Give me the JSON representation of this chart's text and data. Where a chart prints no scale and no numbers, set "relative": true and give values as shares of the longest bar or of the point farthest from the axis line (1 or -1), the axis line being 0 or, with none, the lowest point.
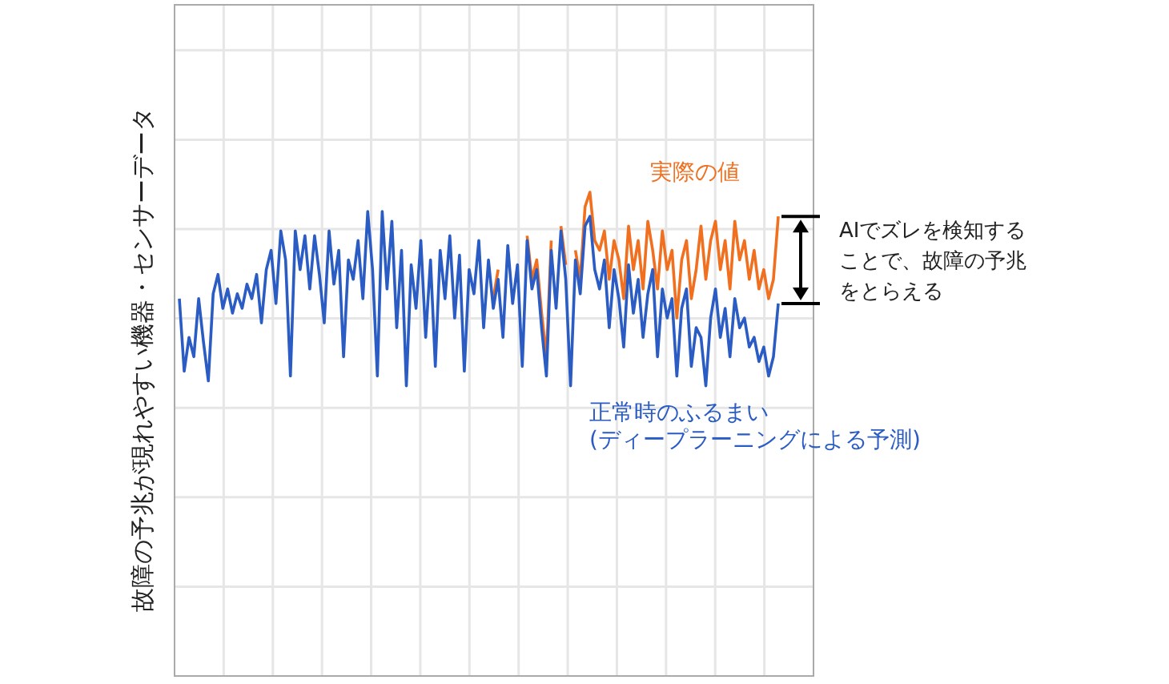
{
  "chart_data": {
    "type": "line",
    "relative": true,
    "grid": true,
    "marker": "none",
    "line_style": "solid",
    "ylabel": "故障の予兆が現れやすい機器・センサーデータ",
    "annotations": [
      "AIでズレを検知することで、故障の予兆をとらえる"
    ],
    "categories": [
      null,
      null,
      null,
      null,
      null,
      null,
      null,
      null,
      null,
      null,
      null,
      null,
      null,
      null,
      null,
      null,
      null,
      null,
      null,
      null,
      null,
      null,
      null,
      null,
      null,
      null,
      null,
      null,
      null,
      null,
      null,
      null,
      null,
      null,
      null,
      null,
      null,
      null,
      null,
      null,
      null,
      null,
      null,
      null,
      null,
      null,
      null,
      null,
      null,
      null,
      null,
      null,
      null,
      null,
      null,
      null,
      null,
      null,
      null,
      null,
      null,
      null,
      null,
      null,
      null,
      null,
      null,
      null,
      null,
      null,
      null,
      null,
      null,
      null,
      null,
      null,
      null,
      null,
      null,
      null,
      null,
      null,
      null,
      null,
      null,
      null,
      null,
      null,
      null,
      null,
      null,
      null,
      null,
      null,
      null,
      null,
      null,
      null,
      null,
      null,
      null,
      null,
      null,
      null,
      null,
      null,
      null,
      null,
      null,
      null,
      null,
      null,
      null,
      null,
      null,
      null,
      null,
      null,
      null,
      null,
      null,
      null,
      null,
      null,
      null
    ],
    "series": [
      {
        "name": "実際の値",
        "color": "#f07020",
        "values": [
          null,
          null,
          null,
          null,
          null,
          null,
          null,
          null,
          null,
          null,
          null,
          null,
          null,
          null,
          null,
          null,
          null,
          null,
          null,
          null,
          null,
          null,
          null,
          null,
          null,
          null,
          null,
          null,
          null,
          null,
          null,
          null,
          null,
          null,
          null,
          null,
          null,
          null,
          null,
          null,
          null,
          null,
          null,
          null,
          null,
          null,
          null,
          null,
          null,
          null,
          null,
          null,
          null,
          null,
          null,
          null,
          null,
          null,
          null,
          null,
          null,
          null,
          null,
          null,
          null,
          0.78,
          0.84,
          null,
          null,
          null,
          null,
          null,
          0.91,
          0.82,
          0.86,
          0.75,
          0.66,
          0.9,
          null,
          0.93,
          0.85,
          null,
          0.88,
          0.82,
          0.97,
          1.0,
          0.9,
          0.88,
          0.92,
          0.82,
          0.9,
          0.86,
          0.78,
          0.93,
          0.84,
          0.9,
          0.8,
          0.94,
          0.88,
          0.8,
          0.92,
          0.84,
          0.88,
          0.74,
          0.86,
          0.9,
          0.78,
          0.84,
          0.93,
          0.82,
          0.9,
          0.94,
          0.84,
          0.9,
          0.8,
          0.94,
          0.86,
          0.9,
          0.82,
          0.88,
          0.8,
          0.84,
          0.78,
          0.82,
          0.95
        ]
      },
      {
        "name": "正常時のふるまい\n(ディープラーニングによる予測)",
        "color": "#2a5cc4",
        "values": [
          0.78,
          0.63,
          0.7,
          0.66,
          0.78,
          0.69,
          0.61,
          0.79,
          0.83,
          0.76,
          0.8,
          0.75,
          0.79,
          0.76,
          0.81,
          0.78,
          0.83,
          0.73,
          0.84,
          0.88,
          0.77,
          0.92,
          0.86,
          0.62,
          0.92,
          0.84,
          0.91,
          0.8,
          0.91,
          0.83,
          0.73,
          0.92,
          0.81,
          0.88,
          0.66,
          0.86,
          0.82,
          0.9,
          0.78,
          0.96,
          0.84,
          0.62,
          0.96,
          0.8,
          0.94,
          0.72,
          0.88,
          0.6,
          0.85,
          0.76,
          0.9,
          0.7,
          0.86,
          0.64,
          0.88,
          0.78,
          0.91,
          0.74,
          0.87,
          0.63,
          0.84,
          0.79,
          0.9,
          0.72,
          0.86,
          0.76,
          0.82,
          0.7,
          0.89,
          0.77,
          0.85,
          0.64,
          0.9,
          0.8,
          0.84,
          0.72,
          0.62,
          0.88,
          0.76,
          0.92,
          0.82,
          0.6,
          0.86,
          0.79,
          0.93,
          0.95,
          0.84,
          0.8,
          0.86,
          0.72,
          0.84,
          0.78,
          0.68,
          0.85,
          0.75,
          0.82,
          0.7,
          0.79,
          0.84,
          0.66,
          0.8,
          0.74,
          0.78,
          0.62,
          0.76,
          0.8,
          0.64,
          0.72,
          0.7,
          0.6,
          0.74,
          0.8,
          0.7,
          0.76,
          0.66,
          0.78,
          0.72,
          0.74,
          0.68,
          0.7,
          0.65,
          0.68,
          0.62,
          0.66,
          0.77
        ]
      }
    ]
  }
}
